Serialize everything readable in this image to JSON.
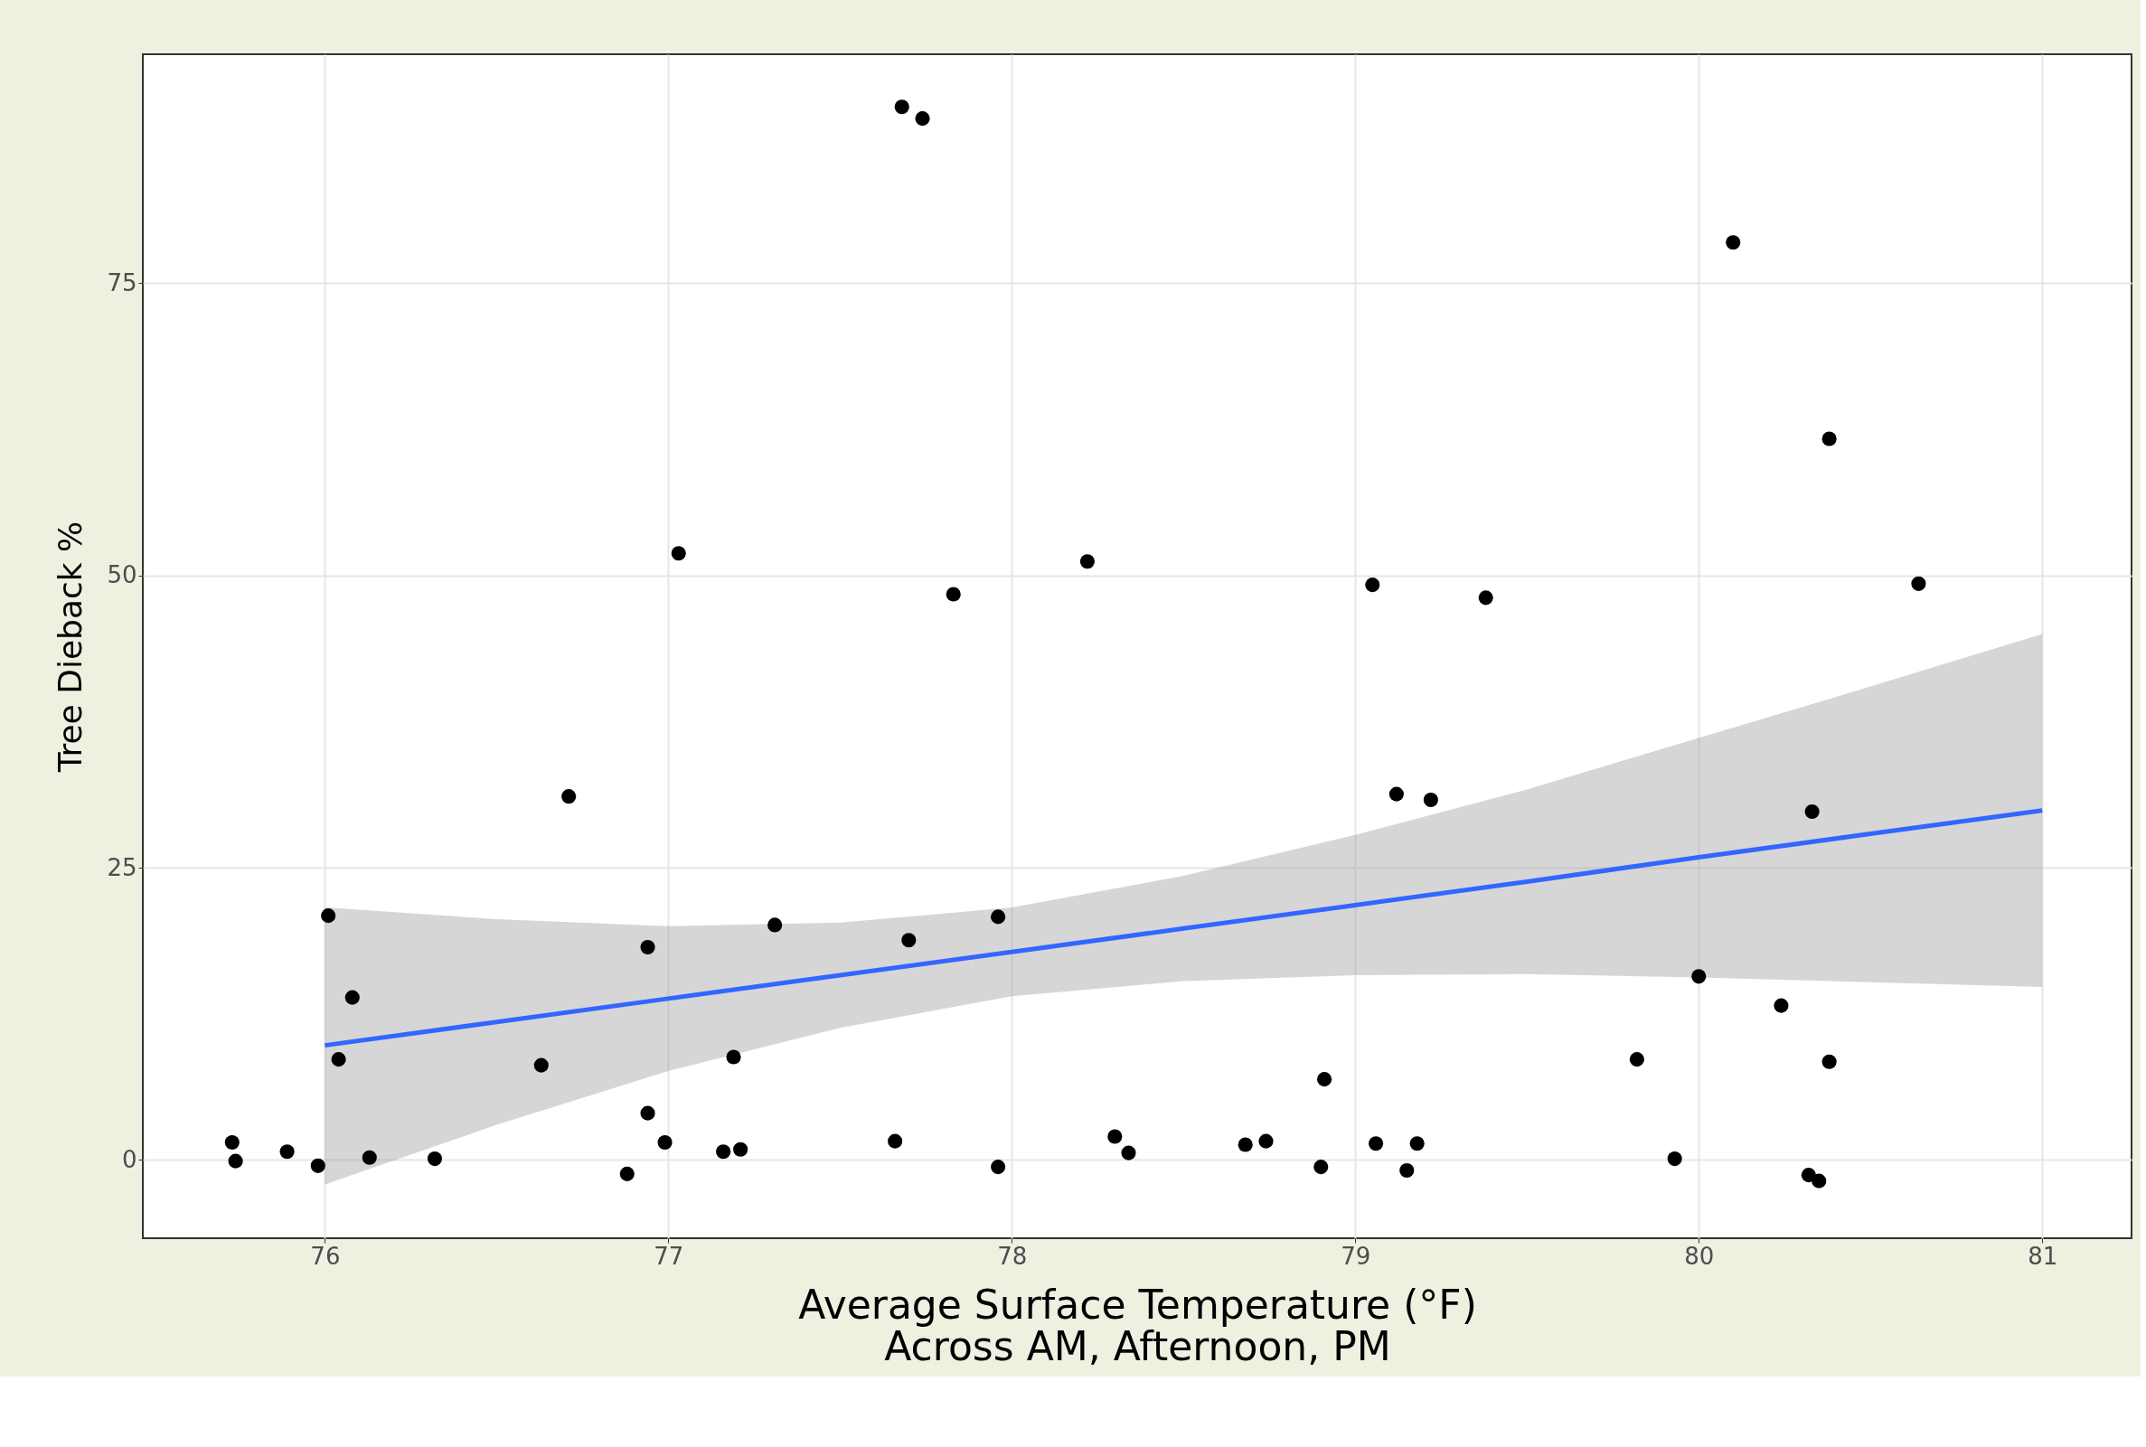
{
  "chart_data": {
    "type": "scatter",
    "xlabel": "Average Surface Temperature (°F)\nAcross AM, Afternoon, PM",
    "ylabel": "Tree Dieback %",
    "xlim": [
      75.47,
      81.26
    ],
    "ylim": [
      -6.7,
      94.6
    ],
    "xticks": [
      76,
      77,
      78,
      79,
      80,
      81
    ],
    "yticks": [
      0,
      25,
      50,
      75
    ],
    "grid": true,
    "series": [
      {
        "marker": "circle",
        "color": "#000000",
        "x": [
          75.73,
          75.74,
          75.89,
          75.98,
          76.01,
          76.04,
          76.08,
          76.13,
          76.32,
          76.63,
          76.71,
          76.88,
          76.94,
          76.94,
          76.99,
          77.03,
          77.16,
          77.21,
          77.19,
          77.31,
          77.66,
          77.68,
          77.74,
          77.7,
          77.83,
          77.96,
          77.96,
          78.22,
          78.3,
          78.34,
          78.68,
          78.74,
          78.91,
          78.9,
          79.05,
          79.06,
          79.12,
          79.15,
          79.18,
          79.22,
          79.38,
          79.82,
          79.93,
          80.0,
          80.1,
          80.24,
          80.32,
          80.35,
          80.33,
          80.38,
          80.38,
          80.64
        ],
        "values": [
          1.5,
          -0.1,
          0.7,
          -0.5,
          20.9,
          8.6,
          13.9,
          0.2,
          0.1,
          8.1,
          31.1,
          -1.2,
          18.2,
          4.0,
          1.5,
          51.9,
          0.7,
          0.9,
          8.8,
          20.1,
          1.6,
          90.1,
          89.1,
          18.8,
          48.4,
          20.8,
          -0.6,
          51.2,
          2.0,
          0.6,
          1.3,
          1.6,
          6.9,
          -0.6,
          49.2,
          1.4,
          31.3,
          -0.9,
          1.4,
          30.8,
          48.1,
          8.6,
          0.1,
          15.7,
          78.5,
          13.2,
          -1.3,
          -1.8,
          29.8,
          8.4,
          61.7,
          49.3
        ]
      },
      {
        "type": "line",
        "line_style": "solid",
        "color": "#3366ff",
        "x": [
          76,
          76.5,
          77,
          77.5,
          78,
          78.5,
          79,
          79.5,
          80,
          80.5,
          81
        ],
        "values": [
          9.8,
          11.8,
          13.8,
          15.8,
          17.8,
          19.8,
          21.8,
          23.8,
          25.9,
          27.9,
          29.9
        ],
        "lower": [
          -2.1,
          3.0,
          7.6,
          11.3,
          14.0,
          15.3,
          15.8,
          15.9,
          15.6,
          15.2,
          14.8
        ],
        "upper": [
          21.6,
          20.6,
          20.0,
          20.3,
          21.6,
          24.3,
          27.8,
          31.7,
          36.1,
          40.5,
          45.0
        ]
      }
    ]
  }
}
